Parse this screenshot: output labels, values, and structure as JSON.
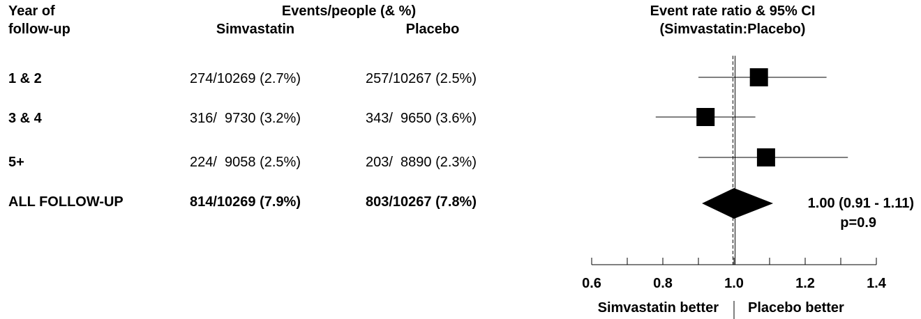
{
  "header": {
    "year_col_line1": "Year of",
    "year_col_line2": "follow-up",
    "events_title": "Events/people (& %)",
    "simvastatin": "Simvastatin",
    "placebo": "Placebo",
    "ratio_title_line1": "Event rate ratio & 95% CI",
    "ratio_title_line2": "(Simvastatin:Placebo)"
  },
  "rows": [
    {
      "label": "1 & 2",
      "simva": "274/10269 (2.7%)",
      "placebo": "257/10267 (2.5%)"
    },
    {
      "label": "3 & 4",
      "simva": "316/  9730 (3.2%)",
      "placebo": "343/  9650 (3.6%)"
    },
    {
      "label": "5+",
      "simva": "224/  9058 (2.5%)",
      "placebo": "203/  8890 (2.3%)"
    }
  ],
  "total": {
    "label": "ALL FOLLOW-UP",
    "simva": "814/10269 (7.9%)",
    "placebo": "803/10267 (7.8%)",
    "estimate_text": "1.00 (0.91 - 1.11)",
    "p_text": "p=0.9"
  },
  "footer": {
    "left": "Simvastatin better",
    "right": "Placebo better"
  },
  "chart_data": {
    "type": "scatter",
    "xlabel": "",
    "xlim": [
      0.6,
      1.4
    ],
    "x_ticks": [
      "0.6",
      "0.8",
      "1.0",
      "1.2",
      "1.4"
    ],
    "x_tick_values": [
      0.6,
      0.8,
      1.0,
      1.2,
      1.4
    ],
    "minor_tick_step": 0.1,
    "reference_line": 1.0,
    "series": [
      {
        "marker": "square",
        "points": [
          {
            "label": "1 & 2",
            "ratio": 1.07,
            "lower": 0.9,
            "upper": 1.26
          },
          {
            "label": "3 & 4",
            "ratio": 0.92,
            "lower": 0.78,
            "upper": 1.06
          },
          {
            "label": "5+",
            "ratio": 1.09,
            "lower": 0.9,
            "upper": 1.32
          }
        ]
      },
      {
        "marker": "diamond",
        "points": [
          {
            "label": "ALL FOLLOW-UP",
            "ratio": 1.0,
            "lower": 0.91,
            "upper": 1.11
          }
        ]
      }
    ]
  }
}
